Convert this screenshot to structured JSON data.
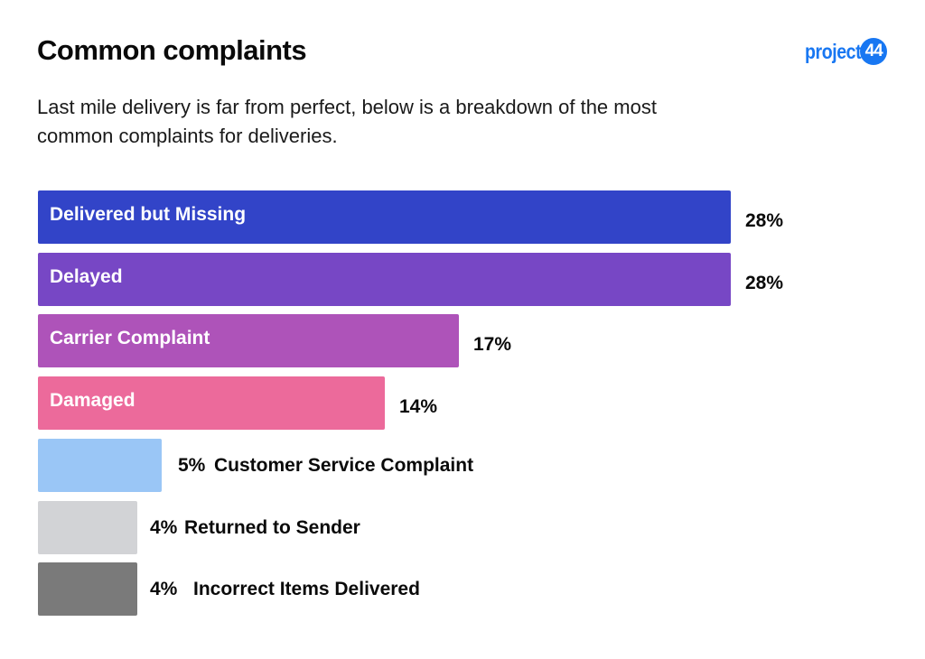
{
  "header": {
    "title": "Common complaints",
    "subtitle": "Last mile delivery is far from perfect, below is a breakdown of the most common complaints for deliveries.",
    "logo_text": "project",
    "logo_badge": "44"
  },
  "colors": {
    "brand": "#1877f2"
  },
  "chart_data": {
    "type": "bar",
    "orientation": "horizontal",
    "title": "Common complaints",
    "xlabel": "",
    "ylabel": "",
    "unit": "%",
    "grid": false,
    "categories": [
      "Delivered but Missing",
      "Delayed",
      "Carrier Complaint",
      "Damaged",
      "Customer Service Complaint",
      "Returned to Sender",
      "Incorrect Items Delivered"
    ],
    "values": [
      28,
      28,
      17,
      14,
      5,
      4,
      4
    ],
    "value_labels": [
      "28%",
      "28%",
      "17%",
      "14%",
      "5%",
      "4%",
      "4%"
    ],
    "label_position": [
      "inside",
      "inside",
      "inside",
      "inside",
      "outside",
      "outside",
      "outside"
    ],
    "colors": [
      "#3244c8",
      "#7747c5",
      "#ae53b9",
      "#ec6a9b",
      "#9ac6f6",
      "#d2d3d6",
      "#7a7a7a"
    ],
    "xlim": [
      0,
      28
    ]
  }
}
